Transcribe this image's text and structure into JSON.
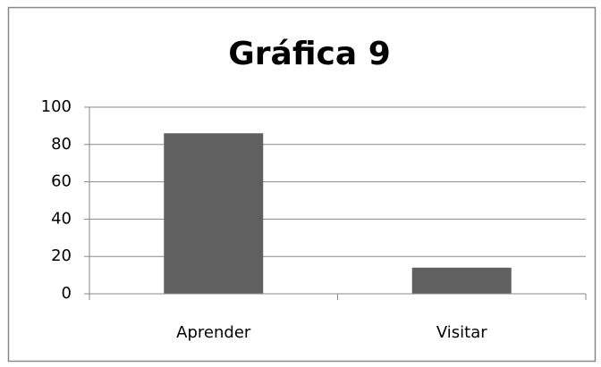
{
  "chart_data": {
    "type": "bar",
    "title": "Gráfica 9",
    "categories": [
      "Aprender",
      "Visitar"
    ],
    "values": [
      86,
      14
    ],
    "color": "#606060",
    "ylim": [
      0,
      100
    ],
    "yticks": [
      0,
      20,
      40,
      60,
      80,
      100
    ],
    "grid": true
  }
}
